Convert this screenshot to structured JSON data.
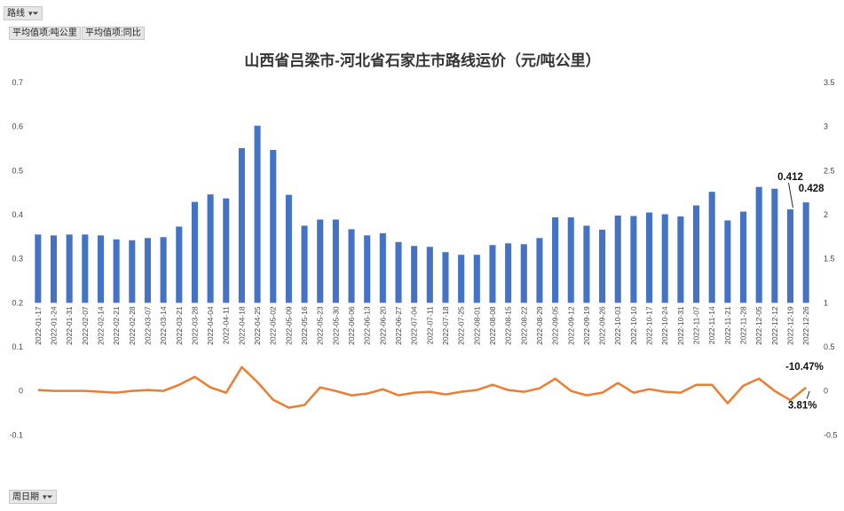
{
  "pivot": {
    "filter_route_label": "路线",
    "filter_week_label": "周日期",
    "value_button_1": "平均值项:吨公里",
    "value_button_2": "平均值项:同比",
    "filter_icon": "funnel-dropdown-icon"
  },
  "chart_data": {
    "type": "bar",
    "title": "山西省吕梁市-河北省石家庄市路线运价（元/吨公里）",
    "categories": [
      "2022-01-17",
      "2022-01-24",
      "2022-01-31",
      "2022-02-07",
      "2022-02-14",
      "2022-02-21",
      "2022-02-28",
      "2022-03-07",
      "2022-03-14",
      "2022-03-21",
      "2022-03-28",
      "2022-04-04",
      "2022-04-11",
      "2022-04-18",
      "2022-04-25",
      "2022-05-02",
      "2022-05-09",
      "2022-05-16",
      "2022-05-23",
      "2022-05-30",
      "2022-06-06",
      "2022-06-13",
      "2022-06-20",
      "2022-06-27",
      "2022-07-04",
      "2022-07-11",
      "2022-07-18",
      "2022-07-25",
      "2022-08-01",
      "2022-08-08",
      "2022-08-15",
      "2022-08-22",
      "2022-08-29",
      "2022-09-05",
      "2022-09-12",
      "2022-09-19",
      "2022-09-26",
      "2022-10-03",
      "2022-10-10",
      "2022-10-17",
      "2022-10-24",
      "2022-10-31",
      "2022-11-07",
      "2022-11-14",
      "2022-11-21",
      "2022-11-28",
      "2022-12-05",
      "2022-12-12",
      "2022-12-19",
      "2022-12-26"
    ],
    "series": [
      {
        "type": "bar",
        "axis": "left",
        "color": "#4472c4",
        "values": [
          0.355,
          0.353,
          0.355,
          0.355,
          0.353,
          0.344,
          0.342,
          0.347,
          0.349,
          0.373,
          0.429,
          0.446,
          0.437,
          0.551,
          0.602,
          0.547,
          0.445,
          0.375,
          0.389,
          0.389,
          0.367,
          0.353,
          0.358,
          0.338,
          0.329,
          0.327,
          0.315,
          0.309,
          0.309,
          0.331,
          0.335,
          0.333,
          0.347,
          0.394,
          0.394,
          0.375,
          0.366,
          0.398,
          0.397,
          0.405,
          0.401,
          0.396,
          0.421,
          0.452,
          0.387,
          0.407,
          0.463,
          0.459,
          0.412,
          0.428
        ]
      },
      {
        "type": "line",
        "axis": "right",
        "color": "#ed7d31",
        "values": [
          0.01,
          0.0,
          0.0,
          0.0,
          -0.01,
          -0.02,
          0.0,
          0.01,
          0.0,
          0.07,
          0.16,
          0.04,
          -0.02,
          0.27,
          0.1,
          -0.1,
          -0.19,
          -0.16,
          0.04,
          0.0,
          -0.05,
          -0.03,
          0.02,
          -0.05,
          -0.02,
          -0.01,
          -0.04,
          -0.01,
          0.01,
          0.07,
          0.01,
          -0.01,
          0.03,
          0.14,
          0.0,
          -0.05,
          -0.02,
          0.09,
          -0.02,
          0.02,
          -0.01,
          -0.02,
          0.07,
          0.07,
          -0.14,
          0.06,
          0.14,
          0.0,
          -0.1047,
          0.0381
        ]
      }
    ],
    "y_left": {
      "min": -0.2,
      "max": 0.7,
      "ticks": [
        "-0.2",
        "-0.1",
        "0",
        "0.1",
        "0.2",
        "0.3",
        "0.4",
        "0.5",
        "0.6",
        "0.7"
      ]
    },
    "y_right": {
      "min": -1,
      "max": 3.5,
      "ticks": [
        "-1",
        "-0.5",
        "0",
        "0.5",
        "1",
        "1.5",
        "2",
        "2.5",
        "3",
        "3.5"
      ]
    },
    "annotations": [
      {
        "index": 48,
        "series": 0,
        "text": "0.412"
      },
      {
        "index": 49,
        "series": 0,
        "text": "0.428"
      },
      {
        "index": 48,
        "series": 1,
        "text": "-10.47%"
      },
      {
        "index": 49,
        "series": 1,
        "text": "3.81%"
      }
    ],
    "grid": false,
    "legend": "none"
  }
}
